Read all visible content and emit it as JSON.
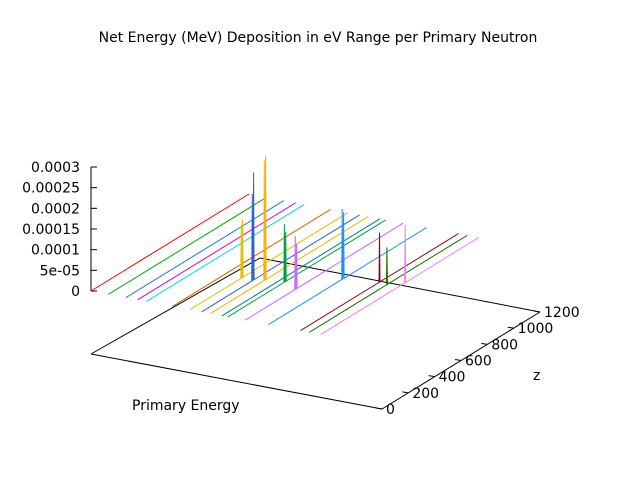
{
  "chart_data": {
    "type": "line",
    "title": "Net Energy (MeV) Deposition in eV Range per Primary Neutron",
    "xlabel": "Primary Energy",
    "ylabel": "",
    "zlabel": "z",
    "zlim": [
      0,
      0.0003
    ],
    "ylim": [
      0,
      1200
    ],
    "z_ticks": [
      "0.0003",
      "0.00025",
      "0.0002",
      "0.00015",
      "0.0001",
      "5e-05",
      "0"
    ],
    "y_ticks": [
      "0",
      "200",
      "400",
      "600",
      "800",
      "1000",
      "1200"
    ],
    "grid": false,
    "series": [
      {
        "color": "#ff0000",
        "x": 0.0,
        "peaks": []
      },
      {
        "color": "#00aa00",
        "x": 0.06,
        "peaks": []
      },
      {
        "color": "#1f77d8",
        "x": 0.12,
        "peaks": []
      },
      {
        "color": "#dd00dd",
        "x": 0.16,
        "peaks": []
      },
      {
        "color": "#00dddd",
        "x": 0.19,
        "peaks": []
      },
      {
        "color": "#e06000",
        "x": 0.28,
        "peaks": []
      },
      {
        "color": "#e0c000",
        "x": 0.34,
        "peaks": [
          {
            "y": 390,
            "z": 0.00013
          },
          {
            "y": 400,
            "z": 0.00014
          }
        ]
      },
      {
        "color": "#3060d0",
        "x": 0.38,
        "peaks": [
          {
            "y": 385,
            "z": 0.00021
          },
          {
            "y": 395,
            "z": 0.00026
          }
        ]
      },
      {
        "color": "#ffb000",
        "x": 0.41,
        "peaks": [
          {
            "y": 410,
            "z": 0.00029
          },
          {
            "y": 420,
            "z": 0.0003
          }
        ]
      },
      {
        "color": "#008080",
        "x": 0.45,
        "peaks": []
      },
      {
        "color": "#00a040",
        "x": 0.47,
        "peaks": [
          {
            "y": 430,
            "z": 0.00014
          },
          {
            "y": 440,
            "z": 0.00012
          }
        ]
      },
      {
        "color": "#cc66ff",
        "x": 0.53,
        "peaks": [
          {
            "y": 380,
            "z": 0.00013
          },
          {
            "y": 390,
            "z": 0.00011
          }
        ]
      },
      {
        "color": "#1e90ff",
        "x": 0.61,
        "peaks": [
          {
            "y": 560,
            "z": 0.00017
          },
          {
            "y": 570,
            "z": 0.00016
          }
        ]
      },
      {
        "color": "#900020",
        "x": 0.72,
        "peaks": [
          {
            "y": 600,
            "z": 0.00012
          }
        ]
      },
      {
        "color": "#207000",
        "x": 0.75,
        "peaks": [
          {
            "y": 590,
            "z": 9e-05
          }
        ]
      },
      {
        "color": "#ee82ee",
        "x": 0.79,
        "peaks": [
          {
            "y": 640,
            "z": 0.00014
          }
        ]
      }
    ]
  }
}
